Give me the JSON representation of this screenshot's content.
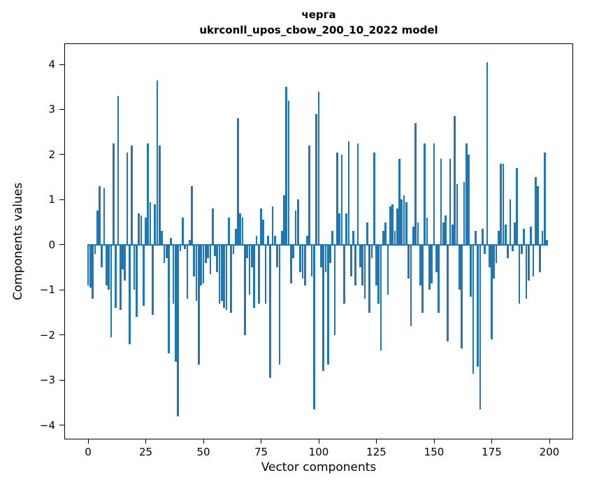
{
  "title_line1": "черга",
  "title_line2": "ukrconll_upos_cbow_200_10_2022 model",
  "chart_data": {
    "type": "bar",
    "title": "черга — ukrconll_upos_cbow_200_10_2022 model",
    "xlabel": "Vector components",
    "ylabel": "Components values",
    "bar_color": "#1f77b4",
    "grid": false,
    "legend": "none",
    "xlim": [
      -10,
      210
    ],
    "ylim": [
      -4.3,
      4.45
    ],
    "xticks": [
      0,
      25,
      50,
      75,
      100,
      125,
      150,
      175,
      200
    ],
    "yticks": [
      -4,
      -3,
      -2,
      -1,
      0,
      1,
      2,
      3,
      4
    ],
    "x_start": 0,
    "values": [
      -0.9,
      -0.95,
      -1.2,
      -0.2,
      0.75,
      1.3,
      -0.5,
      1.25,
      -0.9,
      -1.0,
      -2.05,
      2.25,
      -1.4,
      3.3,
      -1.45,
      -0.55,
      -0.8,
      2.05,
      -2.2,
      2.2,
      -1.0,
      -1.6,
      0.7,
      0.65,
      -1.35,
      0.6,
      2.25,
      0.95,
      -1.55,
      0.9,
      3.65,
      2.2,
      0.3,
      -0.4,
      -0.3,
      -2.4,
      0.15,
      -1.3,
      -2.6,
      -3.8,
      -0.15,
      0.6,
      -0.1,
      -1.2,
      0.1,
      1.3,
      -0.7,
      -1.25,
      -2.65,
      -0.9,
      -0.85,
      -0.4,
      -0.3,
      -0.65,
      0.8,
      -0.25,
      -0.6,
      -1.3,
      -1.25,
      -1.4,
      -1.45,
      0.6,
      -1.5,
      -0.2,
      0.35,
      2.8,
      0.7,
      0.6,
      -2.0,
      -0.3,
      -1.1,
      -0.5,
      -1.4,
      0.2,
      -1.3,
      0.8,
      0.55,
      -1.3,
      0.2,
      -2.95,
      0.85,
      0.2,
      -0.5,
      -2.65,
      0.3,
      1.1,
      3.5,
      3.2,
      -0.85,
      -0.3,
      0.75,
      1.0,
      -0.6,
      -0.75,
      -0.9,
      0.2,
      2.2,
      -0.7,
      -3.65,
      2.9,
      3.4,
      -0.5,
      -2.8,
      -0.6,
      -2.65,
      -0.4,
      0.3,
      -2.0,
      2.05,
      0.7,
      2.0,
      -1.3,
      0.7,
      2.3,
      -0.7,
      0.3,
      -0.9,
      2.25,
      -0.5,
      -0.9,
      -1.2,
      0.5,
      -1.5,
      -0.3,
      2.05,
      -0.9,
      -1.3,
      -2.35,
      0.3,
      0.5,
      -1.1,
      0.85,
      0.9,
      0.3,
      0.8,
      1.9,
      1.0,
      1.1,
      0.95,
      -0.75,
      -1.8,
      0.4,
      2.7,
      0.5,
      -0.9,
      -1.5,
      2.25,
      0.6,
      -1.0,
      -0.85,
      2.25,
      -0.6,
      -1.5,
      1.9,
      0.5,
      0.65,
      -2.15,
      1.9,
      0.45,
      2.85,
      1.35,
      -1.0,
      -2.3,
      1.4,
      2.25,
      2.0,
      -1.15,
      -2.85,
      0.3,
      -2.7,
      -3.65,
      0.35,
      -0.2,
      4.05,
      -0.5,
      -2.1,
      -0.75,
      -0.4,
      0.3,
      1.8,
      1.8,
      0.45,
      -0.3,
      1.0,
      -0.15,
      0.5,
      1.7,
      -1.3,
      -0.2,
      0.35,
      -1.2,
      -0.8,
      0.4,
      -0.7,
      1.5,
      1.3,
      -0.6,
      0.3,
      2.05,
      0.1
    ]
  }
}
